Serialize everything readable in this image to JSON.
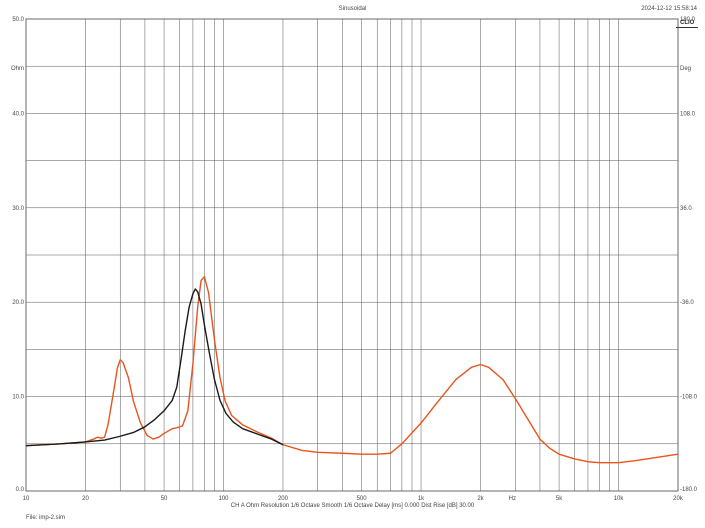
{
  "header": {
    "title": "Sinusoidal",
    "timestamp": "2024-12-12 15:58:14",
    "brand": "CLIO"
  },
  "footer": {
    "info": "CH A   Ohm   Resolution 1/6 Octave   Smooth 1/6 Octave   Delay [ms] 0.000   Dist Rise [dB] 30.00",
    "file": "File: imp-2.sim"
  },
  "chart_data": {
    "type": "line",
    "x_scale": "log",
    "xlim": [
      10,
      20000
    ],
    "x_ticks": [
      {
        "value": 10,
        "label": "10"
      },
      {
        "value": 20,
        "label": "20"
      },
      {
        "value": 50,
        "label": "50"
      },
      {
        "value": 100,
        "label": "100"
      },
      {
        "value": 200,
        "label": "200"
      },
      {
        "value": 500,
        "label": "500"
      },
      {
        "value": 1000,
        "label": "1k"
      },
      {
        "value": 2000,
        "label": "2k"
      },
      {
        "value": 5000,
        "label": "5k"
      },
      {
        "value": 10000,
        "label": "10k"
      },
      {
        "value": 20000,
        "label": "20k"
      }
    ],
    "x_unit": "Hz",
    "y_left": {
      "unit": "Ohm",
      "ylim": [
        0,
        50
      ],
      "ticks": [
        {
          "value": 0,
          "label": "0.0"
        },
        {
          "value": 10,
          "label": "10.0"
        },
        {
          "value": 20,
          "label": "20.0"
        },
        {
          "value": 30,
          "label": "30.0"
        },
        {
          "value": 40,
          "label": "40.0"
        },
        {
          "value": 50,
          "label": "50.0"
        }
      ]
    },
    "y_right": {
      "unit": "Deg",
      "ylim": [
        -180,
        180
      ],
      "ticks": [
        {
          "value": 180,
          "label": "180.0"
        },
        {
          "value": 108,
          "label": "108.0"
        },
        {
          "value": 36,
          "label": "36.0"
        },
        {
          "value": -36,
          "label": "-36.0"
        },
        {
          "value": -108,
          "label": "-108.0"
        },
        {
          "value": -180,
          "label": "-180.0"
        }
      ]
    },
    "grid": true,
    "series": [
      {
        "color": "#e8541f",
        "points": [
          [
            10,
            4.8
          ],
          [
            15,
            5.0
          ],
          [
            20,
            5.2
          ],
          [
            22,
            5.5
          ],
          [
            23,
            5.7
          ],
          [
            24,
            5.6
          ],
          [
            25,
            5.7
          ],
          [
            26,
            7.0
          ],
          [
            27,
            9.0
          ],
          [
            28,
            11.0
          ],
          [
            29,
            13.0
          ],
          [
            30,
            13.9
          ],
          [
            31,
            13.6
          ],
          [
            33,
            12.0
          ],
          [
            35,
            9.5
          ],
          [
            38,
            7.2
          ],
          [
            41,
            5.9
          ],
          [
            44,
            5.5
          ],
          [
            47,
            5.7
          ],
          [
            50,
            6.1
          ],
          [
            55,
            6.6
          ],
          [
            58,
            6.7
          ],
          [
            62,
            6.9
          ],
          [
            66,
            8.5
          ],
          [
            70,
            13.5
          ],
          [
            74,
            19.5
          ],
          [
            77,
            22.3
          ],
          [
            80,
            22.7
          ],
          [
            84,
            21.0
          ],
          [
            90,
            16.0
          ],
          [
            96,
            12.0
          ],
          [
            102,
            9.5
          ],
          [
            110,
            8.0
          ],
          [
            125,
            7.0
          ],
          [
            150,
            6.2
          ],
          [
            175,
            5.6
          ],
          [
            200,
            4.9
          ],
          [
            250,
            4.3
          ],
          [
            300,
            4.1
          ],
          [
            400,
            4.0
          ],
          [
            500,
            3.9
          ],
          [
            600,
            3.9
          ],
          [
            700,
            4.0
          ],
          [
            800,
            5.0
          ],
          [
            1000,
            7.2
          ],
          [
            1200,
            9.3
          ],
          [
            1500,
            11.8
          ],
          [
            1800,
            13.1
          ],
          [
            2000,
            13.4
          ],
          [
            2200,
            13.1
          ],
          [
            2600,
            11.8
          ],
          [
            3000,
            9.8
          ],
          [
            3500,
            7.5
          ],
          [
            4000,
            5.5
          ],
          [
            4500,
            4.5
          ],
          [
            5000,
            3.9
          ],
          [
            6000,
            3.4
          ],
          [
            7000,
            3.1
          ],
          [
            8000,
            3.0
          ],
          [
            9000,
            3.0
          ],
          [
            10000,
            3.0
          ],
          [
            12000,
            3.2
          ],
          [
            15000,
            3.5
          ],
          [
            20000,
            3.9
          ]
        ]
      },
      {
        "color": "#1a1a1a",
        "points": [
          [
            10,
            4.8
          ],
          [
            15,
            5.0
          ],
          [
            20,
            5.2
          ],
          [
            25,
            5.4
          ],
          [
            30,
            5.8
          ],
          [
            35,
            6.2
          ],
          [
            40,
            6.8
          ],
          [
            45,
            7.6
          ],
          [
            50,
            8.5
          ],
          [
            55,
            9.6
          ],
          [
            58,
            11.0
          ],
          [
            61,
            14.0
          ],
          [
            64,
            17.0
          ],
          [
            67,
            19.5
          ],
          [
            70,
            20.9
          ],
          [
            72,
            21.4
          ],
          [
            74,
            21.1
          ],
          [
            77,
            19.8
          ],
          [
            80,
            17.6
          ],
          [
            85,
            14.5
          ],
          [
            90,
            11.8
          ],
          [
            96,
            9.6
          ],
          [
            103,
            8.2
          ],
          [
            112,
            7.3
          ],
          [
            125,
            6.6
          ],
          [
            150,
            6.0
          ],
          [
            175,
            5.5
          ],
          [
            200,
            4.9
          ]
        ]
      }
    ]
  }
}
